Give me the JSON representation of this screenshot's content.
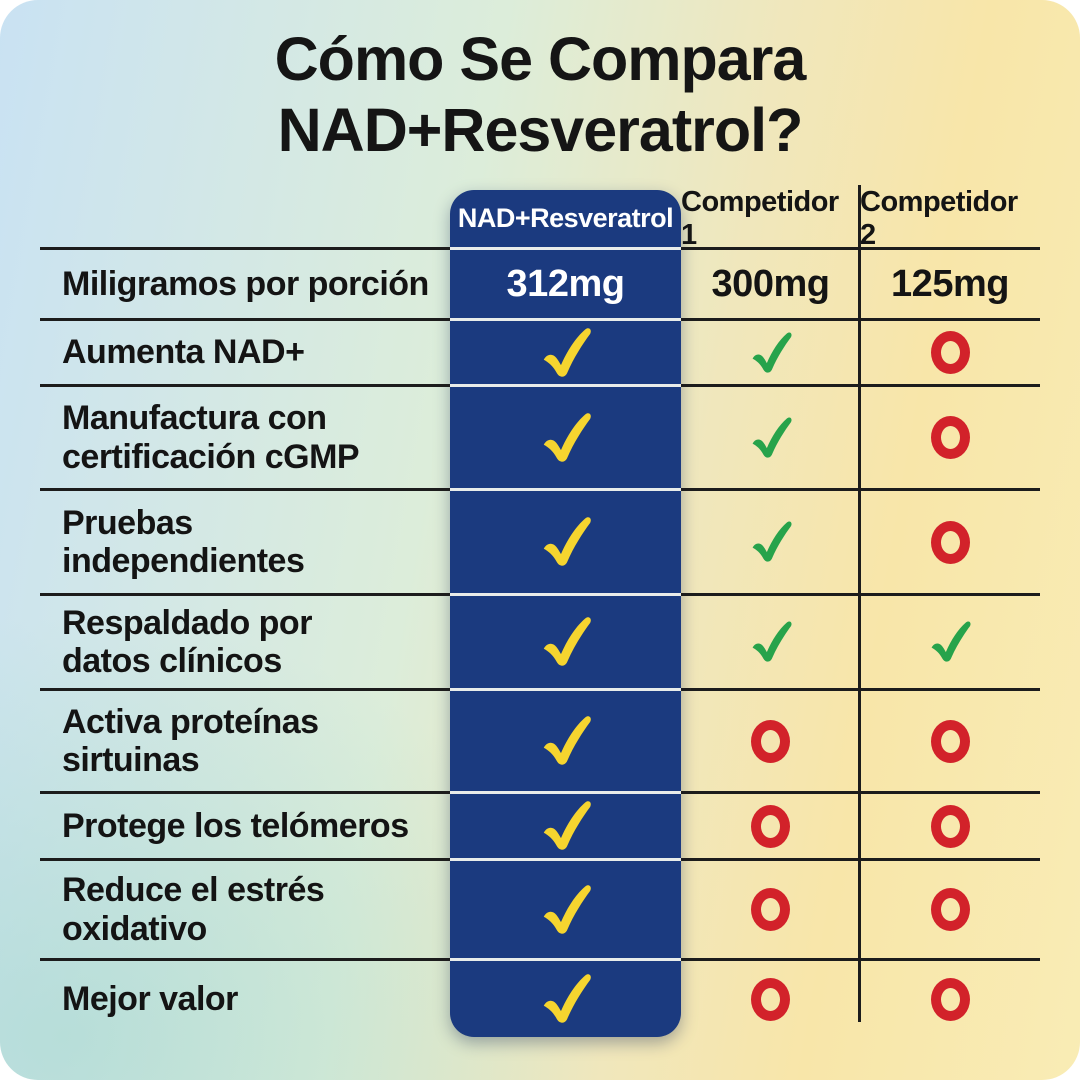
{
  "title": {
    "line1": "Cómo Se Compara",
    "line2": "NAD+Resveratrol?"
  },
  "columns": [
    {
      "label": "NAD+Resveratrol",
      "highlight": true
    },
    {
      "label": "Competidor 1",
      "highlight": false
    },
    {
      "label": "Competidor 2",
      "highlight": false
    }
  ],
  "rows": [
    {
      "label": "Miligramos por porción",
      "cells": [
        {
          "type": "text",
          "value": "312mg"
        },
        {
          "type": "text",
          "value": "300mg"
        },
        {
          "type": "text",
          "value": "125mg"
        }
      ]
    },
    {
      "label": "Aumenta NAD+",
      "cells": [
        {
          "type": "check"
        },
        {
          "type": "check"
        },
        {
          "type": "no"
        }
      ]
    },
    {
      "label": "Manufactura con\ncertificación cGMP",
      "cells": [
        {
          "type": "check"
        },
        {
          "type": "check"
        },
        {
          "type": "no"
        }
      ]
    },
    {
      "label": "Pruebas\nindependientes",
      "cells": [
        {
          "type": "check"
        },
        {
          "type": "check"
        },
        {
          "type": "no"
        }
      ]
    },
    {
      "label": "Respaldado por\ndatos clínicos",
      "cells": [
        {
          "type": "check"
        },
        {
          "type": "check"
        },
        {
          "type": "check"
        }
      ]
    },
    {
      "label": "Activa proteínas\nsirtuinas",
      "cells": [
        {
          "type": "check"
        },
        {
          "type": "no"
        },
        {
          "type": "no"
        }
      ]
    },
    {
      "label": "Protege los telómeros",
      "cells": [
        {
          "type": "check"
        },
        {
          "type": "no"
        },
        {
          "type": "no"
        }
      ]
    },
    {
      "label": "Reduce el estrés\noxidativo",
      "cells": [
        {
          "type": "check"
        },
        {
          "type": "no"
        },
        {
          "type": "no"
        }
      ]
    },
    {
      "label": "Mejor valor",
      "cells": [
        {
          "type": "check"
        },
        {
          "type": "no"
        },
        {
          "type": "no"
        }
      ]
    }
  ],
  "icons": {
    "check": "check-icon",
    "no": "no-circle-icon"
  },
  "colors": {
    "highlight_column": "#1b3a7f",
    "check_on_highlight": "#f6d52f",
    "check_on_competitor": "#27a34b",
    "no_circle": "#d2222a",
    "line": "#1c1c1c",
    "title_text": "#151515",
    "bg_gradient_left": "#c9e2f3",
    "bg_gradient_mid": "#dcedda",
    "bg_gradient_right": "#f8e6a9"
  }
}
